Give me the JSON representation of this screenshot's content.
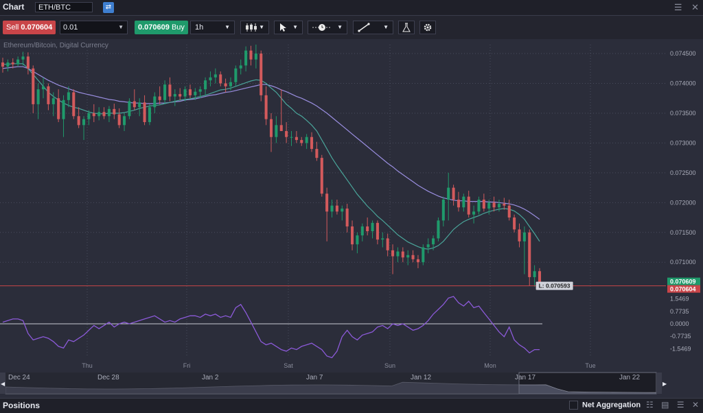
{
  "app": {
    "title": "Chart",
    "symbol": "ETH/BTC"
  },
  "toolbar": {
    "sell_label": "Sell",
    "sell_price": "0.070604",
    "quantity": "0.01",
    "buy_price": "0.070609",
    "buy_label": "Buy",
    "timeframe": "1h"
  },
  "bottom": {
    "title": "Positions",
    "net_aggregation": "Net Aggregation"
  },
  "colors": {
    "up": "#1f9a6b",
    "down": "#d35a5c",
    "sma_fast": "#4aa59a",
    "sma_slow": "#9a8ee0",
    "rsi": "#8c5ad9",
    "bg": "#2b2d3a"
  },
  "icons": [
    "link-icon",
    "menu-icon",
    "close-icon",
    "candles-icon",
    "cursor-icon",
    "clock-icon",
    "line-tool-icon",
    "flask-icon",
    "gear-icon"
  ],
  "chart_data": {
    "type": "candlestick",
    "title": "Ethereum/Bitcoin, Digital Currency",
    "y_ticks": [
      "0.074500",
      "0.074000",
      "0.073500",
      "0.073000",
      "0.072500",
      "0.072000",
      "0.071500",
      "0.071000"
    ],
    "ylim": [
      0.0706,
      0.07465
    ],
    "x_ticks": [
      "Thu",
      "Fri",
      "Sat",
      "Sun",
      "Mon",
      "Tue"
    ],
    "last_buy": "0.070609",
    "last_sell": "0.070604",
    "low_marker": "L: 0.070593",
    "indicator": {
      "type": "line",
      "y_ticks": [
        "1.5469",
        "0.7735",
        "0.0000",
        "-0.7735",
        "-1.5469"
      ],
      "ylim": [
        -2.0,
        2.0
      ]
    },
    "candles": [
      [
        0.07435,
        0.07443,
        0.07418,
        0.07428
      ],
      [
        0.07428,
        0.0744,
        0.0742,
        0.07435
      ],
      [
        0.07435,
        0.07442,
        0.07425,
        0.07432
      ],
      [
        0.07432,
        0.07445,
        0.07428,
        0.0744
      ],
      [
        0.0744,
        0.07453,
        0.0743,
        0.07445
      ],
      [
        0.07445,
        0.07452,
        0.07415,
        0.07425
      ],
      [
        0.07425,
        0.0743,
        0.0735,
        0.07365
      ],
      [
        0.07365,
        0.074,
        0.0734,
        0.0739
      ],
      [
        0.0739,
        0.0741,
        0.07375,
        0.07395
      ],
      [
        0.07395,
        0.074,
        0.07355,
        0.07365
      ],
      [
        0.07365,
        0.07385,
        0.07345,
        0.07375
      ],
      [
        0.07375,
        0.0739,
        0.07335,
        0.0734
      ],
      [
        0.0734,
        0.0738,
        0.0731,
        0.07372
      ],
      [
        0.07372,
        0.07395,
        0.0736,
        0.07385
      ],
      [
        0.07385,
        0.0739,
        0.0734,
        0.07345
      ],
      [
        0.07345,
        0.0736,
        0.07325,
        0.0733
      ],
      [
        0.0733,
        0.07345,
        0.07305,
        0.0734
      ],
      [
        0.0734,
        0.07355,
        0.0733,
        0.0735
      ],
      [
        0.0735,
        0.07365,
        0.07335,
        0.07345
      ],
      [
        0.07345,
        0.0736,
        0.07338,
        0.07352
      ],
      [
        0.07352,
        0.0736,
        0.0734,
        0.07345
      ],
      [
        0.07345,
        0.07362,
        0.07335,
        0.07357
      ],
      [
        0.07357,
        0.07366,
        0.0734,
        0.07348
      ],
      [
        0.07348,
        0.07358,
        0.07325,
        0.0733
      ],
      [
        0.0733,
        0.0735,
        0.0732,
        0.07345
      ],
      [
        0.07345,
        0.07375,
        0.0734,
        0.0737
      ],
      [
        0.0737,
        0.0739,
        0.07355,
        0.0736
      ],
      [
        0.0736,
        0.07375,
        0.07345,
        0.07368
      ],
      [
        0.07368,
        0.0738,
        0.0733,
        0.07335
      ],
      [
        0.07335,
        0.07365,
        0.0733,
        0.0736
      ],
      [
        0.0736,
        0.07385,
        0.0735,
        0.07378
      ],
      [
        0.07378,
        0.07395,
        0.07365,
        0.07372
      ],
      [
        0.07372,
        0.07405,
        0.07365,
        0.07398
      ],
      [
        0.07398,
        0.0741,
        0.0737,
        0.07378
      ],
      [
        0.07378,
        0.0739,
        0.07362,
        0.07382
      ],
      [
        0.07382,
        0.07392,
        0.07372,
        0.07378
      ],
      [
        0.07378,
        0.07395,
        0.0737,
        0.0739
      ],
      [
        0.0739,
        0.07398,
        0.07375,
        0.0738
      ],
      [
        0.0738,
        0.07392,
        0.07372,
        0.07386
      ],
      [
        0.07386,
        0.07395,
        0.07375,
        0.0739
      ],
      [
        0.0739,
        0.0741,
        0.0738,
        0.07405
      ],
      [
        0.07405,
        0.0742,
        0.07395,
        0.0741
      ],
      [
        0.0741,
        0.07425,
        0.074,
        0.07415
      ],
      [
        0.07415,
        0.0742,
        0.07395,
        0.074
      ],
      [
        0.074,
        0.07408,
        0.07385,
        0.07395
      ],
      [
        0.07395,
        0.0741,
        0.07388,
        0.07402
      ],
      [
        0.07402,
        0.0743,
        0.07395,
        0.07425
      ],
      [
        0.07425,
        0.0744,
        0.07415,
        0.0743
      ],
      [
        0.0743,
        0.07462,
        0.0742,
        0.07455
      ],
      [
        0.07455,
        0.07463,
        0.0743,
        0.0744
      ],
      [
        0.0744,
        0.07465,
        0.07425,
        0.0745
      ],
      [
        0.0745,
        0.07455,
        0.0737,
        0.0738
      ],
      [
        0.0738,
        0.07395,
        0.0733,
        0.0734
      ],
      [
        0.0734,
        0.0735,
        0.07285,
        0.0731
      ],
      [
        0.0731,
        0.07345,
        0.073,
        0.0733
      ],
      [
        0.0733,
        0.0739,
        0.0732,
        0.0732
      ],
      [
        0.0732,
        0.07335,
        0.073,
        0.0731
      ],
      [
        0.0731,
        0.0732,
        0.07295,
        0.0731
      ],
      [
        0.0731,
        0.0732,
        0.073,
        0.07305
      ],
      [
        0.07305,
        0.0731,
        0.07295,
        0.073
      ],
      [
        0.073,
        0.07315,
        0.0729,
        0.0731
      ],
      [
        0.0731,
        0.07318,
        0.07285,
        0.0729
      ],
      [
        0.0729,
        0.07302,
        0.0727,
        0.07275
      ],
      [
        0.07275,
        0.0728,
        0.0721,
        0.07215
      ],
      [
        0.07215,
        0.07225,
        0.07135,
        0.07185
      ],
      [
        0.07185,
        0.07205,
        0.07175,
        0.07195
      ],
      [
        0.07195,
        0.07205,
        0.0718,
        0.07185
      ],
      [
        0.07185,
        0.07195,
        0.0717,
        0.0719
      ],
      [
        0.0719,
        0.07198,
        0.0715,
        0.0716
      ],
      [
        0.0716,
        0.0717,
        0.0712,
        0.0713
      ],
      [
        0.0713,
        0.0715,
        0.07115,
        0.07145
      ],
      [
        0.07145,
        0.07165,
        0.07135,
        0.0716
      ],
      [
        0.0716,
        0.07175,
        0.07145,
        0.07152
      ],
      [
        0.07152,
        0.0717,
        0.0714,
        0.07166
      ],
      [
        0.07166,
        0.0717,
        0.0713,
        0.07138
      ],
      [
        0.07138,
        0.0715,
        0.07125,
        0.0714
      ],
      [
        0.0714,
        0.07148,
        0.0711,
        0.0712
      ],
      [
        0.0712,
        0.0713,
        0.0708,
        0.0711
      ],
      [
        0.0711,
        0.07125,
        0.071,
        0.07118
      ],
      [
        0.07118,
        0.07125,
        0.071,
        0.07108
      ],
      [
        0.07108,
        0.0712,
        0.07095,
        0.07112
      ],
      [
        0.07112,
        0.0712,
        0.071,
        0.07105
      ],
      [
        0.07105,
        0.07112,
        0.0709,
        0.071
      ],
      [
        0.071,
        0.0713,
        0.07095,
        0.07125
      ],
      [
        0.07125,
        0.0714,
        0.07115,
        0.0713
      ],
      [
        0.0713,
        0.07145,
        0.0712,
        0.0714
      ],
      [
        0.0714,
        0.07175,
        0.07135,
        0.0717
      ],
      [
        0.0717,
        0.0721,
        0.0716,
        0.07205
      ],
      [
        0.07205,
        0.0725,
        0.0717,
        0.07225
      ],
      [
        0.07225,
        0.0723,
        0.07195,
        0.07205
      ],
      [
        0.07205,
        0.07218,
        0.07185,
        0.07192
      ],
      [
        0.07192,
        0.07215,
        0.07185,
        0.0721
      ],
      [
        0.0721,
        0.0722,
        0.07175,
        0.0718
      ],
      [
        0.0718,
        0.07195,
        0.07165,
        0.07185
      ],
      [
        0.07185,
        0.0721,
        0.0718,
        0.07205
      ],
      [
        0.07205,
        0.07215,
        0.07185,
        0.0719
      ],
      [
        0.0719,
        0.07205,
        0.0718,
        0.072
      ],
      [
        0.072,
        0.0721,
        0.07185,
        0.07192
      ],
      [
        0.07192,
        0.07205,
        0.07185,
        0.07198
      ],
      [
        0.07198,
        0.07208,
        0.07188,
        0.07195
      ],
      [
        0.07195,
        0.07205,
        0.0717,
        0.07175
      ],
      [
        0.07175,
        0.0718,
        0.0715,
        0.07155
      ],
      [
        0.07155,
        0.07165,
        0.07125,
        0.07135
      ],
      [
        0.07135,
        0.0716,
        0.0708,
        0.0715
      ],
      [
        0.0715,
        0.07155,
        0.0706,
        0.07075
      ],
      [
        0.07075,
        0.07095,
        0.07059,
        0.07085
      ],
      [
        0.07085,
        0.0709,
        0.0706,
        0.07065
      ]
    ],
    "sma_fast": [
      0.07432,
      0.07432,
      0.07433,
      0.07433,
      0.07433,
      0.07425,
      0.07415,
      0.07405,
      0.07395,
      0.07385,
      0.07378,
      0.07372,
      0.07367,
      0.07363,
      0.0736,
      0.07358,
      0.07355,
      0.07352,
      0.0735,
      0.07349,
      0.07349,
      0.0735,
      0.0735,
      0.0735,
      0.07351,
      0.07353,
      0.07355,
      0.07358,
      0.0736,
      0.07362,
      0.07363,
      0.07364,
      0.07366,
      0.07368,
      0.0737,
      0.07372,
      0.07373,
      0.07374,
      0.07376,
      0.07378,
      0.0738,
      0.07383,
      0.07386,
      0.07389,
      0.0739,
      0.07392,
      0.07395,
      0.07398,
      0.07401,
      0.07404,
      0.07406,
      0.07405,
      0.074,
      0.07392,
      0.07385,
      0.07375,
      0.07365,
      0.07358,
      0.0735,
      0.07345,
      0.07338,
      0.0733,
      0.0732,
      0.07305,
      0.0729,
      0.07275,
      0.07262,
      0.0725,
      0.07238,
      0.07226,
      0.07214,
      0.07204,
      0.07194,
      0.07186,
      0.07177,
      0.0717,
      0.07162,
      0.07154,
      0.07146,
      0.0714,
      0.07134,
      0.0713,
      0.07126,
      0.07123,
      0.07122,
      0.07124,
      0.07128,
      0.07135,
      0.07145,
      0.07155,
      0.07162,
      0.07168,
      0.07172,
      0.07175,
      0.07178,
      0.07182,
      0.07185,
      0.07187,
      0.07189,
      0.0719,
      0.07189,
      0.07186,
      0.0718,
      0.07172,
      0.0716,
      0.07148,
      0.07135
    ],
    "sma_slow": [
      0.07425,
      0.07426,
      0.07427,
      0.07428,
      0.07428,
      0.07425,
      0.0742,
      0.07415,
      0.0741,
      0.07405,
      0.07401,
      0.07397,
      0.07394,
      0.07391,
      0.07388,
      0.07385,
      0.07383,
      0.07381,
      0.07379,
      0.07377,
      0.07375,
      0.07373,
      0.07372,
      0.0737,
      0.07369,
      0.07368,
      0.07367,
      0.07367,
      0.07366,
      0.07366,
      0.07366,
      0.07367,
      0.07367,
      0.07368,
      0.07369,
      0.0737,
      0.07372,
      0.07373,
      0.07374,
      0.07376,
      0.07378,
      0.0738,
      0.07381,
      0.07383,
      0.07385,
      0.07386,
      0.07388,
      0.0739,
      0.07392,
      0.07394,
      0.07396,
      0.07398,
      0.07398,
      0.07396,
      0.07393,
      0.07389,
      0.07386,
      0.07382,
      0.07378,
      0.07375,
      0.07371,
      0.07367,
      0.07362,
      0.07356,
      0.0735,
      0.07343,
      0.07336,
      0.07329,
      0.07322,
      0.07315,
      0.07308,
      0.07301,
      0.07294,
      0.07287,
      0.0728,
      0.07273,
      0.07266,
      0.0726,
      0.07253,
      0.07247,
      0.07241,
      0.07235,
      0.07229,
      0.07224,
      0.07219,
      0.07215,
      0.07211,
      0.07208,
      0.07206,
      0.07204,
      0.07203,
      0.07203,
      0.07202,
      0.07202,
      0.07202,
      0.07202,
      0.07201,
      0.07201,
      0.072,
      0.07199,
      0.07198,
      0.07196,
      0.07193,
      0.07189,
      0.07184,
      0.07178,
      0.07172
    ],
    "rsi": [
      0.1,
      0.2,
      0.3,
      0.3,
      0.2,
      -0.6,
      -1.0,
      -0.9,
      -0.8,
      -0.9,
      -1.1,
      -1.4,
      -1.5,
      -1.0,
      -1.1,
      -0.9,
      -0.7,
      -0.4,
      -0.1,
      -0.3,
      -0.1,
      0.1,
      -0.2,
      0.0,
      0.1,
      0.0,
      0.1,
      0.2,
      0.3,
      0.4,
      0.5,
      0.3,
      0.1,
      0.2,
      0.1,
      0.3,
      0.4,
      0.5,
      0.5,
      0.4,
      0.6,
      0.5,
      0.6,
      0.4,
      0.5,
      0.4,
      1.0,
      1.2,
      0.7,
      0.1,
      -0.5,
      -1.1,
      -1.3,
      -1.2,
      -1.4,
      -1.6,
      -1.7,
      -1.5,
      -1.6,
      -1.4,
      -1.3,
      -1.2,
      -1.4,
      -1.6,
      -2.0,
      -2.1,
      -1.7,
      -0.8,
      -0.4,
      -0.8,
      -1.0,
      -0.7,
      -0.6,
      -0.5,
      -0.2,
      -0.1,
      -0.3,
      0.0,
      -0.1,
      0.0,
      -0.2,
      -0.4,
      -0.3,
      -0.1,
      0.2,
      0.6,
      0.9,
      1.2,
      1.6,
      1.7,
      1.3,
      1.1,
      1.4,
      1.0,
      1.1,
      0.7,
      0.3,
      -0.1,
      -0.5,
      -0.8,
      -0.2,
      -1.0,
      -1.3,
      -1.5,
      -1.8,
      -1.6,
      -1.6
    ],
    "navigator_labels": [
      "Dec 24",
      "Dec 28",
      "Jan 2",
      "Jan 7",
      "Jan 12",
      "Jan 17",
      "Jan 22"
    ]
  }
}
